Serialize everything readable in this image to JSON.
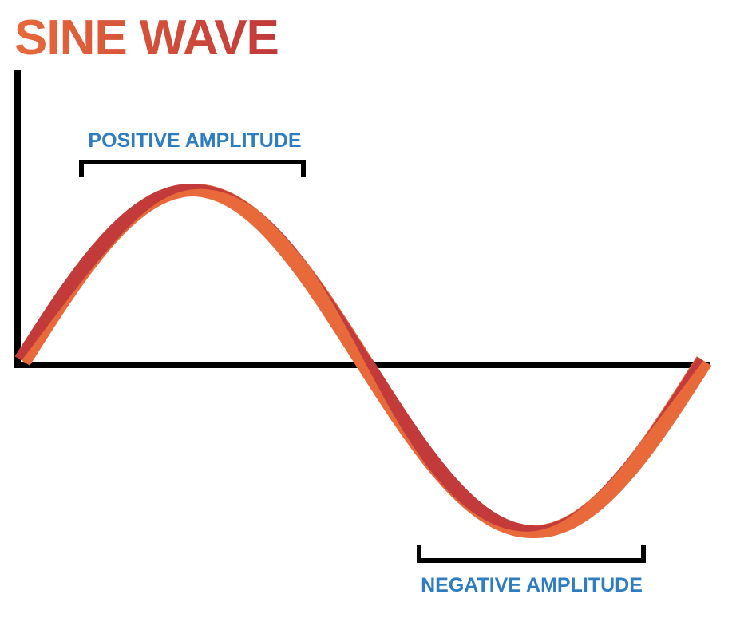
{
  "title": "SINE WAVE",
  "labels": {
    "positive": "POSITIVE AMPLITUDE",
    "negative": "NEGATIVE AMPLITUDE"
  },
  "colors": {
    "title_start": "#E8693A",
    "title_end": "#C0393A",
    "wave_light": "#E8693A",
    "wave_dark": "#C0393A",
    "label": "#2F7DC1",
    "axis": "#000000",
    "background": "#FFFFFF"
  }
}
